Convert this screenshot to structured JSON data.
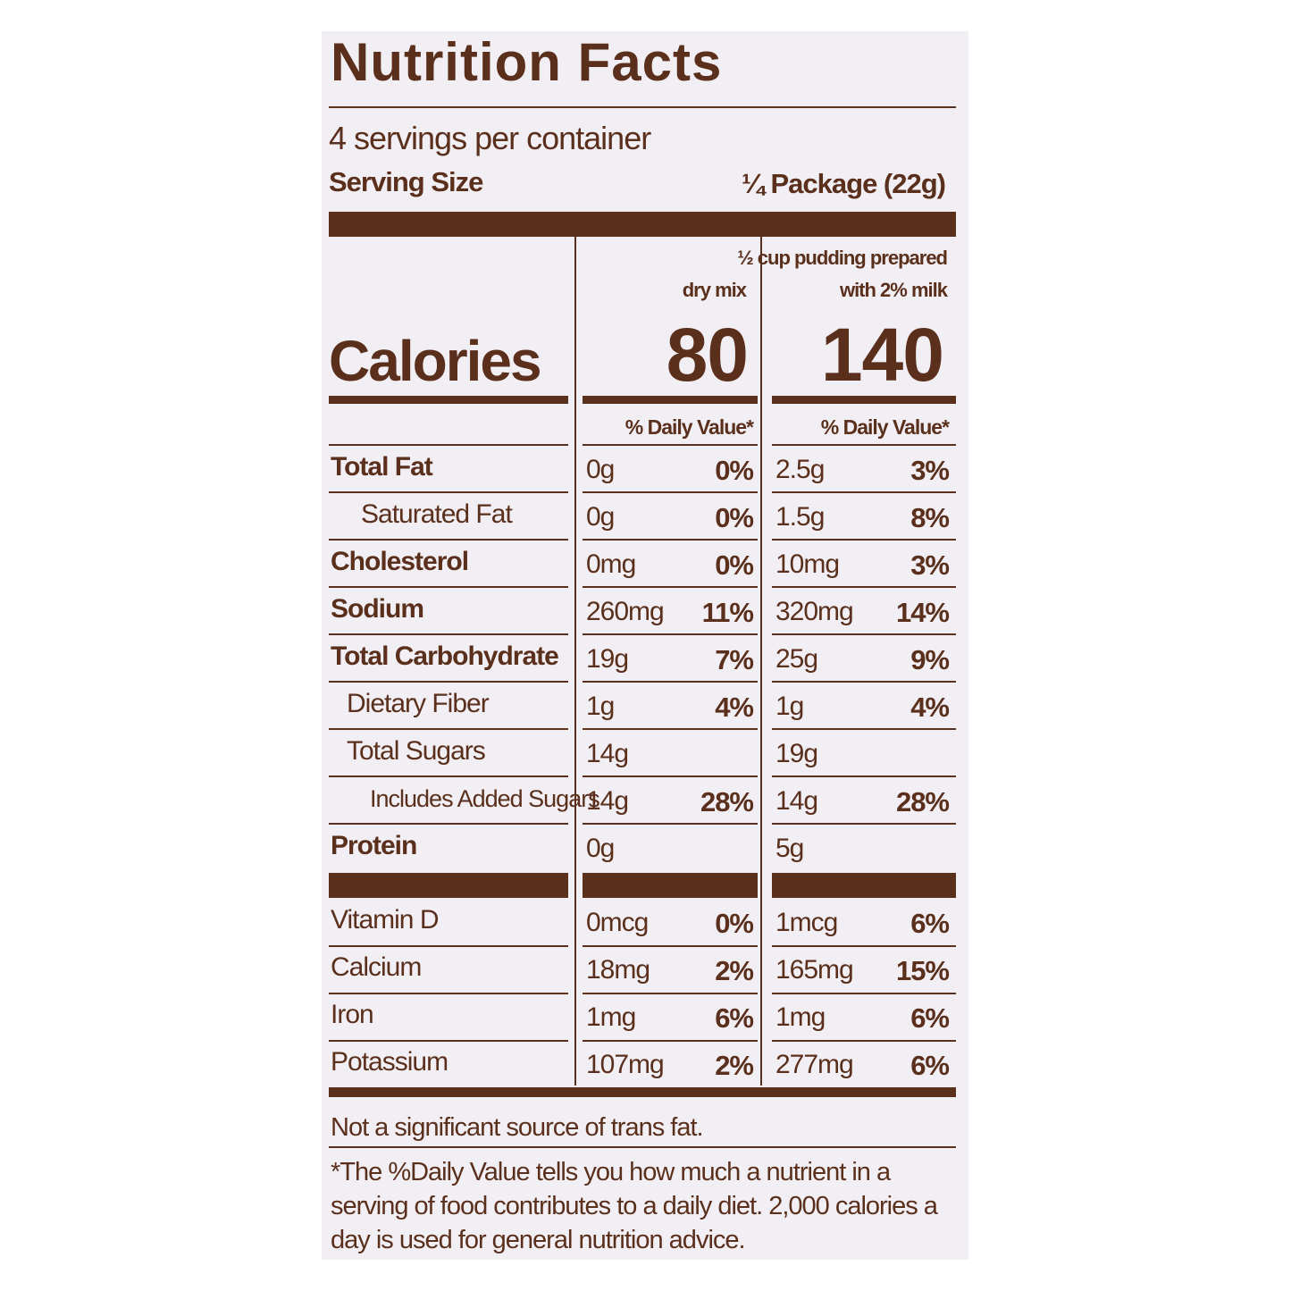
{
  "title": "Nutrition Facts",
  "servings": "4 servings per container",
  "serving_size": {
    "label": "Serving Size",
    "value": "¼ Package (22g)"
  },
  "calories_label": "Calories",
  "columns": [
    {
      "header": [
        "dry mix"
      ],
      "calories": "80",
      "dv_header": "% Daily Value*"
    },
    {
      "header": [
        "½ cup pudding prepared",
        "with 2% milk"
      ],
      "calories": "140",
      "dv_header": "% Daily Value*"
    }
  ],
  "nutrients": [
    {
      "name": "Total Fat",
      "bold": true,
      "indent": 0,
      "cells": [
        {
          "amount": "0g",
          "dv": "0%"
        },
        {
          "amount": "2.5g",
          "dv": "3%"
        }
      ]
    },
    {
      "name": "Saturated Fat",
      "bold": false,
      "indent": 2,
      "cells": [
        {
          "amount": "0g",
          "dv": "0%"
        },
        {
          "amount": "1.5g",
          "dv": "8%"
        }
      ]
    },
    {
      "name": "Cholesterol",
      "bold": true,
      "indent": 0,
      "cells": [
        {
          "amount": "0mg",
          "dv": "0%"
        },
        {
          "amount": "10mg",
          "dv": "3%"
        }
      ]
    },
    {
      "name": "Sodium",
      "bold": true,
      "indent": 0,
      "cells": [
        {
          "amount": "260mg",
          "dv": "11%"
        },
        {
          "amount": "320mg",
          "dv": "14%"
        }
      ]
    },
    {
      "name": "Total Carbohydrate",
      "bold": true,
      "indent": 0,
      "cells": [
        {
          "amount": "19g",
          "dv": "7%"
        },
        {
          "amount": "25g",
          "dv": "9%"
        }
      ]
    },
    {
      "name": "Dietary Fiber",
      "bold": false,
      "indent": 1,
      "cells": [
        {
          "amount": "1g",
          "dv": "4%"
        },
        {
          "amount": "1g",
          "dv": "4%"
        }
      ]
    },
    {
      "name": "Total Sugars",
      "bold": false,
      "indent": 1,
      "cells": [
        {
          "amount": "14g"
        },
        {
          "amount": "19g"
        }
      ]
    },
    {
      "name": "Includes Added Sugars",
      "bold": false,
      "indent": 3,
      "cells": [
        {
          "amount": "14g",
          "dv": "28%"
        },
        {
          "amount": "14g",
          "dv": "28%"
        }
      ]
    },
    {
      "name": "Protein",
      "bold": true,
      "indent": 0,
      "cells": [
        {
          "amount": "0g"
        },
        {
          "amount": "5g"
        }
      ]
    }
  ],
  "minerals": [
    {
      "name": "Vitamin D",
      "cells": [
        {
          "amount": "0mcg",
          "dv": "0%"
        },
        {
          "amount": "1mcg",
          "dv": "6%"
        }
      ]
    },
    {
      "name": "Calcium",
      "cells": [
        {
          "amount": "18mg",
          "dv": "2%"
        },
        {
          "amount": "165mg",
          "dv": "15%"
        }
      ]
    },
    {
      "name": "Iron",
      "cells": [
        {
          "amount": "1mg",
          "dv": "6%"
        },
        {
          "amount": "1mg",
          "dv": "6%"
        }
      ]
    },
    {
      "name": "Potassium",
      "cells": [
        {
          "amount": "107mg",
          "dv": "2%"
        },
        {
          "amount": "277mg",
          "dv": "6%"
        }
      ]
    }
  ],
  "footnotes": [
    "Not a significant source of trans fat.",
    "*The %Daily Value tells you how much a nutrient in a serving of food contributes to a daily diet. 2,000 calories a day is used for general nutrition advice."
  ]
}
